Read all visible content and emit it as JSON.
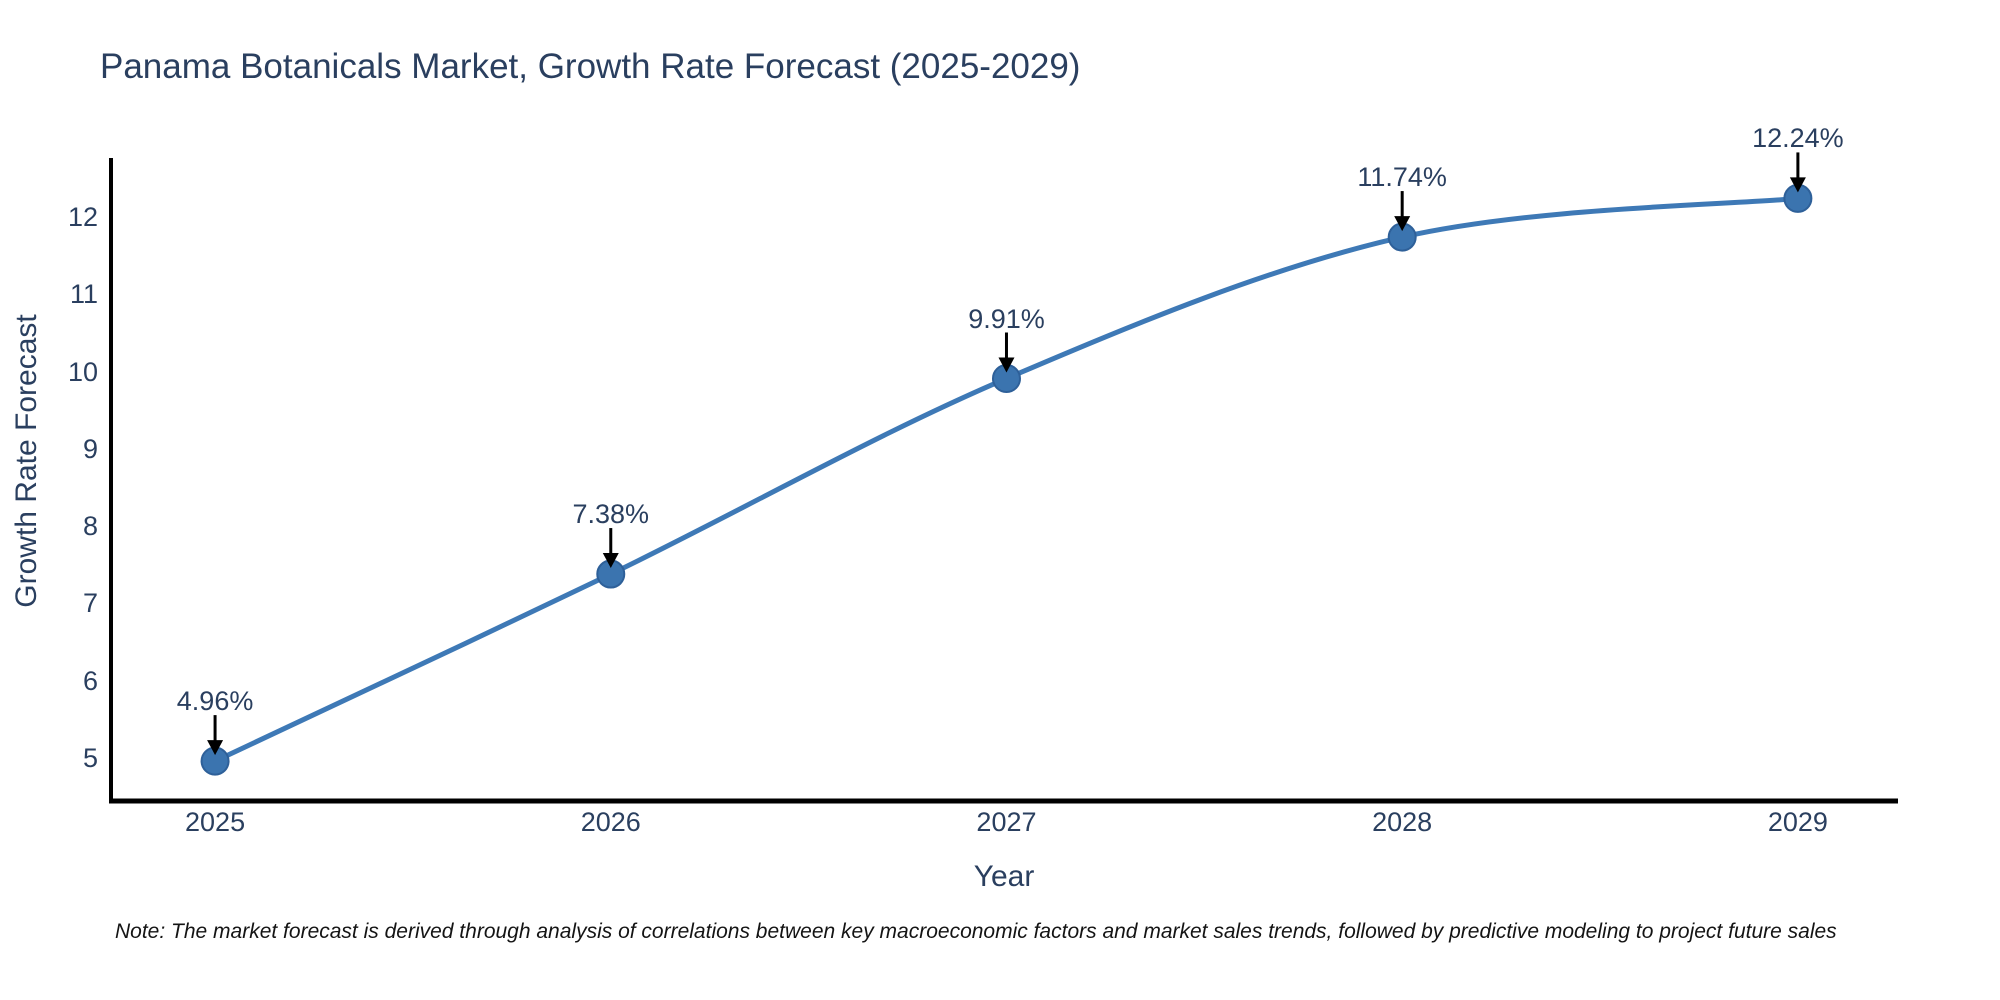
{
  "title": "Panama Botanicals Market, Growth Rate Forecast (2025-2029)",
  "note": "Note: The market forecast is derived through analysis of correlations between key macroeconomic factors and market sales trends, followed by predictive modeling to project future sales",
  "chart_data": {
    "type": "line",
    "title": "Panama Botanicals Market, Growth Rate Forecast (2025-2029)",
    "xlabel": "Year",
    "ylabel": "Growth Rate Forecast",
    "x": [
      2025,
      2026,
      2027,
      2028,
      2029
    ],
    "values": [
      4.96,
      7.38,
      9.91,
      11.74,
      12.24
    ],
    "point_labels": [
      "4.96%",
      "7.38%",
      "9.91%",
      "11.74%",
      "12.24%"
    ],
    "xtick_labels": [
      "2025",
      "2026",
      "2027",
      "2028",
      "2029"
    ],
    "ytick_values": [
      5,
      6,
      7,
      8,
      9,
      10,
      11,
      12
    ],
    "xlim": [
      2024.737,
      2029.253
    ],
    "ylim": [
      4.418,
      12.763
    ],
    "grid": false,
    "legend_position": "none",
    "line_shape": "spline",
    "series_name": "Growth Rate Forecast",
    "colors": {
      "line": "#3e79b6",
      "marker_fill": "#3b74af",
      "marker_edge": "#2e6099",
      "arrow": "#000000",
      "axis_line": "#000000",
      "label_text": "#2a3f5f",
      "note_text": "#141414",
      "background": "#ffffff"
    }
  }
}
